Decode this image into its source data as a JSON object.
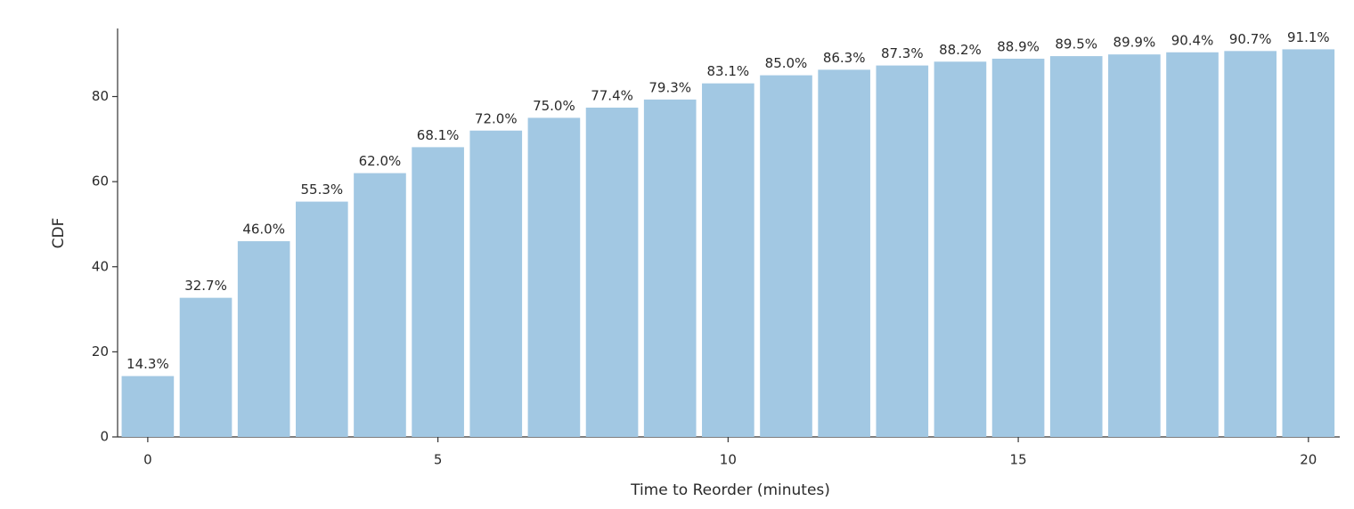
{
  "chart_data": {
    "type": "bar",
    "x_label": "Time to Reorder (minutes)",
    "y_label": "CDF",
    "x": [
      0,
      1,
      2,
      3,
      4,
      5,
      6,
      7,
      8,
      9,
      10,
      11,
      12,
      13,
      14,
      15,
      16,
      17,
      18,
      19,
      20
    ],
    "values": [
      14.3,
      32.7,
      46.0,
      55.3,
      62.0,
      68.1,
      72.0,
      75.0,
      77.4,
      79.3,
      83.1,
      85.0,
      86.3,
      87.3,
      88.2,
      88.9,
      89.5,
      89.9,
      90.4,
      90.7,
      91.1
    ],
    "value_labels": [
      "14.3%",
      "32.7%",
      "46.0%",
      "55.3%",
      "62.0%",
      "68.1%",
      "72.0%",
      "75.0%",
      "77.4%",
      "79.3%",
      "83.1%",
      "85.0%",
      "86.3%",
      "87.3%",
      "88.2%",
      "88.9%",
      "89.5%",
      "89.9%",
      "90.4%",
      "90.7%",
      "91.1%"
    ],
    "color": "#a2c8e3",
    "xlim": [
      -0.52,
      20.54
    ],
    "xticks": [
      0,
      5,
      10,
      15,
      20
    ],
    "ylim": [
      0,
      96
    ],
    "yticks": [
      0,
      20,
      40,
      60,
      80
    ]
  }
}
